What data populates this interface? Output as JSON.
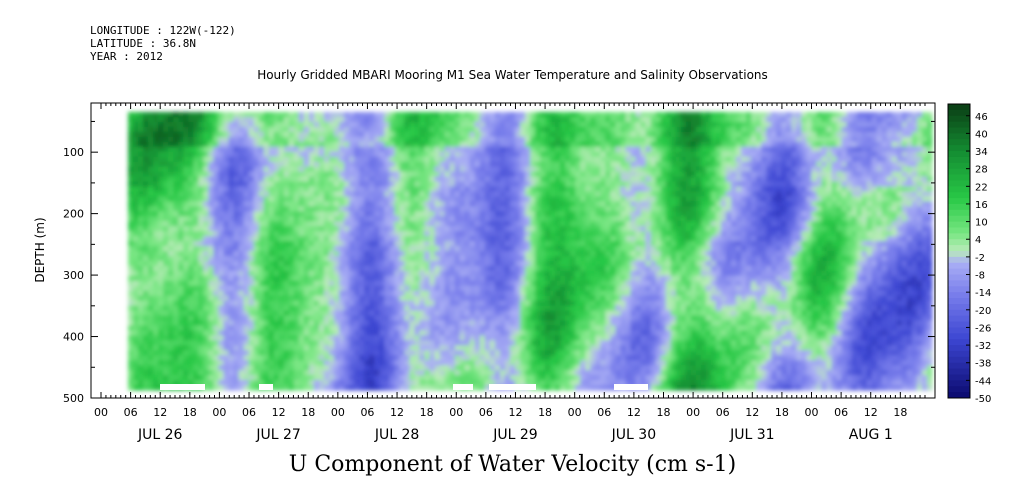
{
  "meta": {
    "longitude": "LONGITUDE : 122W(-122)",
    "latitude": "LATITUDE : 36.8N",
    "year": "YEAR : 2012"
  },
  "chart_data": {
    "type": "heatmap",
    "title": "Hourly Gridded MBARI Mooring M1 Sea Water Temperature and Salinity Observations",
    "subtitle": "U Component of Water Velocity (cm s-1)",
    "ylabel": "DEPTH (m)",
    "xlabel": "",
    "y_ticks": [
      100,
      200,
      300,
      400,
      500
    ],
    "y_range": [
      20,
      500
    ],
    "x_hour_tick_labels": [
      "00",
      "06",
      "12",
      "18",
      "00",
      "06",
      "12",
      "18",
      "00",
      "06",
      "12",
      "18",
      "00",
      "06",
      "12",
      "18",
      "00",
      "06",
      "12",
      "18",
      "00",
      "06",
      "12",
      "18",
      "00",
      "06",
      "12",
      "18"
    ],
    "x_day_labels": [
      "JUL 26",
      "JUL 27",
      "JUL 28",
      "JUL 29",
      "JUL 30",
      "JUL 31",
      "AUG  1"
    ],
    "colorbar_labels": [
      "46",
      "40",
      "34",
      "28",
      "22",
      "16",
      "10",
      "4",
      "-2",
      "-8",
      "-14",
      "-20",
      "-26",
      "-32",
      "-38",
      "-44",
      "-50"
    ],
    "colorbar_range": [
      -50,
      50
    ],
    "colors": {
      "positive_strong": "#0a3d14",
      "positive": "#22cc44",
      "near_zero": "#b8ecb8",
      "negative": "#8a8ef0",
      "negative_strong": "#0a0a6e"
    }
  }
}
